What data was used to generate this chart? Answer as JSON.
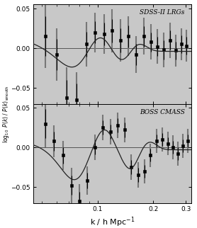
{
  "xlabel": "k / h Mpc$^{-1}$",
  "xlim": [
    0.045,
    0.32
  ],
  "ylim": [
    -0.07,
    0.055
  ],
  "yticks": [
    -0.05,
    0,
    0.05
  ],
  "xticks": [
    0.1,
    0.2,
    0.3
  ],
  "label_top": "SDSS-II LRGs",
  "label_bot": "BOSS CMASS",
  "bg_color": "#c8c8c8",
  "data_color": "#000000",
  "error_light": "#888888",
  "sdss_k": [
    0.052,
    0.06,
    0.068,
    0.077,
    0.087,
    0.097,
    0.108,
    0.12,
    0.133,
    0.147,
    0.162,
    0.178,
    0.194,
    0.211,
    0.228,
    0.246,
    0.264,
    0.283,
    0.302
  ],
  "sdss_y": [
    0.015,
    -0.008,
    -0.062,
    -0.065,
    0.005,
    0.02,
    0.018,
    0.022,
    0.01,
    0.015,
    -0.008,
    0.015,
    0.008,
    0.002,
    -0.002,
    0.01,
    -0.003,
    0.005,
    0.003
  ],
  "sdss_err": [
    0.025,
    0.02,
    0.022,
    0.02,
    0.016,
    0.014,
    0.014,
    0.015,
    0.015,
    0.014,
    0.013,
    0.013,
    0.012,
    0.012,
    0.012,
    0.012,
    0.011,
    0.011,
    0.011
  ],
  "sdss_err_wide": [
    0.04,
    0.033,
    0.038,
    0.035,
    0.028,
    0.025,
    0.025,
    0.027,
    0.027,
    0.025,
    0.023,
    0.023,
    0.022,
    0.022,
    0.022,
    0.022,
    0.02,
    0.02,
    0.02
  ],
  "boss_k": [
    0.052,
    0.058,
    0.065,
    0.072,
    0.08,
    0.088,
    0.097,
    0.107,
    0.117,
    0.128,
    0.14,
    0.152,
    0.165,
    0.179,
    0.193,
    0.208,
    0.223,
    0.239,
    0.255,
    0.272,
    0.289,
    0.307
  ],
  "boss_y": [
    0.03,
    0.008,
    -0.01,
    -0.048,
    -0.068,
    -0.042,
    0.0,
    0.025,
    0.02,
    0.028,
    0.022,
    -0.025,
    -0.035,
    -0.03,
    -0.01,
    0.008,
    0.01,
    0.005,
    0.0,
    -0.008,
    0.002,
    0.008
  ],
  "boss_err": [
    0.018,
    0.012,
    0.01,
    0.012,
    0.012,
    0.01,
    0.009,
    0.009,
    0.009,
    0.009,
    0.009,
    0.009,
    0.009,
    0.008,
    0.008,
    0.008,
    0.008,
    0.008,
    0.008,
    0.008,
    0.008,
    0.008
  ],
  "boss_err_wide": [
    0.03,
    0.02,
    0.018,
    0.022,
    0.022,
    0.018,
    0.016,
    0.016,
    0.016,
    0.016,
    0.016,
    0.016,
    0.016,
    0.015,
    0.015,
    0.015,
    0.015,
    0.015,
    0.015,
    0.015,
    0.015,
    0.015
  ]
}
